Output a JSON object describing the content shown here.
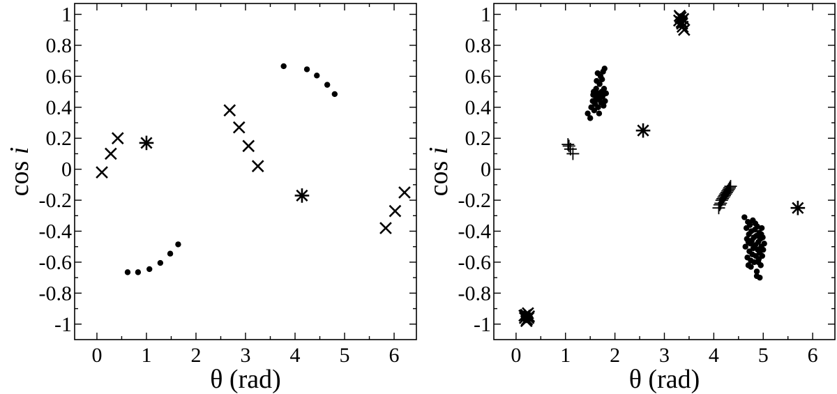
{
  "chart_data": [
    {
      "type": "scatter",
      "xlabel": "θ (rad)",
      "ylabel_main": "cos",
      "ylabel_var": "i",
      "xlim": [
        -0.45,
        6.45
      ],
      "ylim": [
        -1.1,
        1.07
      ],
      "xticks": [
        0,
        1,
        2,
        3,
        4,
        5,
        6
      ],
      "yticks": [
        1,
        0.8,
        0.6,
        0.4,
        0.2,
        0,
        -0.2,
        -0.4,
        -0.6,
        -0.8,
        -1
      ],
      "ytick_labels": [
        "1",
        "0.8",
        "0.6",
        "0.4",
        "0.2",
        "0",
        "-0.2",
        "-0.4",
        "-0.6",
        "-0.8",
        "-1"
      ],
      "grid": false,
      "series": [
        {
          "marker": "cross",
          "points": [
            [
              0.1,
              -0.02
            ],
            [
              0.28,
              0.1
            ],
            [
              0.42,
              0.2
            ],
            [
              2.68,
              0.38
            ],
            [
              2.87,
              0.27
            ],
            [
              3.06,
              0.15
            ],
            [
              3.25,
              0.02
            ],
            [
              5.83,
              -0.38
            ],
            [
              6.02,
              -0.27
            ],
            [
              6.21,
              -0.15
            ]
          ]
        },
        {
          "marker": "dot",
          "points": [
            [
              0.62,
              -0.665
            ],
            [
              0.83,
              -0.665
            ],
            [
              1.06,
              -0.645
            ],
            [
              1.28,
              -0.605
            ],
            [
              1.48,
              -0.545
            ],
            [
              1.64,
              -0.485
            ],
            [
              3.77,
              0.665
            ],
            [
              4.24,
              0.645
            ],
            [
              4.44,
              0.605
            ],
            [
              4.65,
              0.545
            ],
            [
              4.8,
              0.485
            ]
          ]
        },
        {
          "marker": "star",
          "points": [
            [
              1.0,
              0.17
            ],
            [
              4.14,
              -0.17
            ]
          ]
        }
      ]
    },
    {
      "type": "scatter",
      "xlabel": "θ (rad)",
      "ylabel_main": "cos",
      "ylabel_var": "i",
      "xlim": [
        -0.45,
        6.45
      ],
      "ylim": [
        -1.1,
        1.07
      ],
      "xticks": [
        0,
        1,
        2,
        3,
        4,
        5,
        6
      ],
      "yticks": [
        1,
        0.8,
        0.6,
        0.4,
        0.2,
        0,
        -0.2,
        -0.4,
        -0.6,
        -0.8,
        -1
      ],
      "ytick_labels": [
        "1",
        "0.8",
        "0.6",
        "0.4",
        "0.2",
        "0",
        "-0.2",
        "-0.4",
        "-0.6",
        "-0.8",
        "-1"
      ],
      "grid": false,
      "series": [
        {
          "marker": "cross",
          "points": [
            [
              0.18,
              -0.96
            ],
            [
              0.2,
              -0.94
            ],
            [
              0.22,
              -0.97
            ],
            [
              0.24,
              -0.93
            ],
            [
              0.26,
              -0.95
            ],
            [
              0.21,
              -0.98
            ],
            [
              0.17,
              -0.945
            ],
            [
              0.25,
              -0.96
            ],
            [
              3.3,
              0.96
            ],
            [
              3.33,
              0.98
            ],
            [
              3.36,
              0.94
            ],
            [
              3.38,
              0.97
            ],
            [
              3.35,
              0.95
            ],
            [
              3.4,
              0.9
            ],
            [
              3.31,
              0.99
            ],
            [
              3.37,
              0.92
            ]
          ]
        },
        {
          "marker": "dot",
          "points": [
            [
              0.15,
              -0.95
            ],
            [
              0.19,
              -0.97
            ],
            [
              0.23,
              -0.96
            ],
            [
              0.27,
              -0.955
            ],
            [
              0.2,
              -0.975
            ],
            [
              0.22,
              -0.94
            ],
            [
              0.18,
              -0.965
            ],
            [
              0.25,
              -0.97
            ],
            [
              0.29,
              -0.96
            ],
            [
              0.17,
              -0.955
            ],
            [
              3.31,
              0.95
            ],
            [
              3.34,
              0.97
            ],
            [
              3.36,
              0.96
            ],
            [
              3.38,
              0.98
            ],
            [
              3.33,
              0.93
            ],
            [
              3.35,
              0.99
            ],
            [
              1.45,
              0.36
            ],
            [
              1.5,
              0.33
            ],
            [
              1.52,
              0.4
            ],
            [
              1.55,
              0.44
            ],
            [
              1.56,
              0.48
            ],
            [
              1.57,
              0.5
            ],
            [
              1.58,
              0.38
            ],
            [
              1.6,
              0.42
            ],
            [
              1.61,
              0.47
            ],
            [
              1.62,
              0.52
            ],
            [
              1.63,
              0.57
            ],
            [
              1.64,
              0.45
            ],
            [
              1.65,
              0.62
            ],
            [
              1.66,
              0.4
            ],
            [
              1.67,
              0.49
            ],
            [
              1.68,
              0.36
            ],
            [
              1.69,
              0.55
            ],
            [
              1.7,
              0.46
            ],
            [
              1.71,
              0.6
            ],
            [
              1.72,
              0.43
            ],
            [
              1.73,
              0.5
            ],
            [
              1.74,
              0.58
            ],
            [
              1.75,
              0.47
            ],
            [
              1.76,
              0.63
            ],
            [
              1.77,
              0.41
            ],
            [
              1.78,
              0.52
            ],
            [
              1.79,
              0.65
            ],
            [
              1.8,
              0.44
            ],
            [
              1.82,
              0.49
            ],
            [
              4.62,
              -0.31
            ],
            [
              4.64,
              -0.5
            ],
            [
              4.66,
              -0.38
            ],
            [
              4.67,
              -0.45
            ],
            [
              4.68,
              -0.57
            ],
            [
              4.69,
              -0.34
            ],
            [
              4.7,
              -0.62
            ],
            [
              4.71,
              -0.42
            ],
            [
              4.72,
              -0.53
            ],
            [
              4.73,
              -0.36
            ],
            [
              4.74,
              -0.48
            ],
            [
              4.75,
              -0.59
            ],
            [
              4.76,
              -0.4
            ],
            [
              4.77,
              -0.46
            ],
            [
              4.78,
              -0.55
            ],
            [
              4.79,
              -0.33
            ],
            [
              4.8,
              -0.51
            ],
            [
              4.81,
              -0.44
            ],
            [
              4.82,
              -0.6
            ],
            [
              4.83,
              -0.39
            ],
            [
              4.84,
              -0.49
            ],
            [
              4.85,
              -0.56
            ],
            [
              4.86,
              -0.43
            ],
            [
              4.87,
              -0.66
            ],
            [
              4.88,
              -0.37
            ],
            [
              4.89,
              -0.52
            ],
            [
              4.9,
              -0.47
            ],
            [
              4.91,
              -0.58
            ],
            [
              4.92,
              -0.41
            ],
            [
              4.93,
              -0.54
            ],
            [
              4.94,
              -0.45
            ],
            [
              4.95,
              -0.62
            ],
            [
              4.96,
              -0.5
            ],
            [
              4.97,
              -0.38
            ],
            [
              4.98,
              -0.56
            ],
            [
              4.99,
              -0.44
            ],
            [
              5.0,
              -0.52
            ],
            [
              5.02,
              -0.48
            ],
            [
              4.87,
              -0.69
            ],
            [
              4.93,
              -0.7
            ],
            [
              4.75,
              -0.63
            ],
            [
              4.84,
              -0.35
            ],
            [
              4.96,
              -0.42
            ],
            [
              4.7,
              -0.47
            ],
            [
              4.9,
              -0.6
            ]
          ]
        },
        {
          "marker": "plus",
          "points": [
            [
              1.05,
              0.16
            ],
            [
              1.07,
              0.15
            ],
            [
              1.1,
              0.13
            ],
            [
              1.15,
              0.1
            ],
            [
              4.1,
              -0.25
            ],
            [
              4.12,
              -0.23
            ],
            [
              4.14,
              -0.22
            ],
            [
              4.16,
              -0.2
            ],
            [
              4.18,
              -0.19
            ],
            [
              4.2,
              -0.18
            ],
            [
              4.22,
              -0.17
            ],
            [
              4.24,
              -0.16
            ],
            [
              4.26,
              -0.15
            ],
            [
              4.28,
              -0.14
            ],
            [
              4.3,
              -0.13
            ],
            [
              4.32,
              -0.12
            ],
            [
              4.34,
              -0.11
            ]
          ]
        },
        {
          "marker": "star",
          "points": [
            [
              2.57,
              0.25
            ],
            [
              5.7,
              -0.25
            ]
          ]
        }
      ]
    }
  ]
}
